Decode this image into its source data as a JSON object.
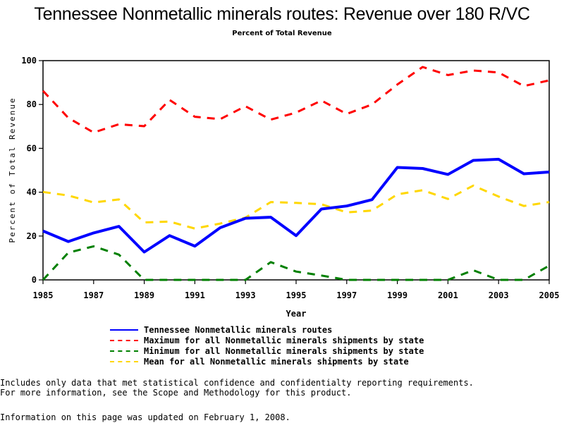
{
  "chart_data": {
    "type": "line",
    "title": "Tennessee Nonmetallic minerals routes: Revenue over 180 R/VC",
    "subtitle": "Percent of Total Revenue",
    "xlabel": "Year",
    "ylabel": "Percent of Total Revenue",
    "xlim": [
      1985,
      2005
    ],
    "ylim": [
      0,
      100
    ],
    "x_ticks": [
      "1985",
      "1987",
      "1989",
      "1991",
      "1993",
      "1995",
      "1997",
      "1999",
      "2001",
      "2003",
      "2005"
    ],
    "y_ticks": [
      "0",
      "20",
      "40",
      "60",
      "80",
      "100"
    ],
    "grid": false,
    "legend_position": "bottom",
    "x": [
      1985,
      1986,
      1987,
      1988,
      1989,
      1990,
      1991,
      1992,
      1993,
      1994,
      1995,
      1996,
      1997,
      1998,
      1999,
      2000,
      2001,
      2002,
      2003,
      2004,
      2005
    ],
    "series": [
      {
        "name": "Tennessee Nonmetallic minerals routes",
        "color": "#0000ff",
        "style": "solid",
        "values": [
          22.3,
          17.5,
          21.4,
          24.4,
          12.7,
          20.2,
          15.4,
          23.8,
          28.1,
          28.6,
          20.2,
          32.3,
          33.7,
          36.6,
          51.3,
          50.8,
          48.1,
          54.5,
          55.0,
          48.4,
          49.2
        ]
      },
      {
        "name": "Maximum for all Nonmetallic minerals shipments by state",
        "color": "#ff0000",
        "style": "dashed",
        "values": [
          86.2,
          73.9,
          67.2,
          71.0,
          70.1,
          82.1,
          74.4,
          73.3,
          79.2,
          73.1,
          76.3,
          81.8,
          75.7,
          80.0,
          89.1,
          97.1,
          93.4,
          95.5,
          94.6,
          88.4,
          91.0
        ]
      },
      {
        "name": "Minimum for all Nonmetallic minerals shipments by state",
        "color": "#008000",
        "style": "dashed",
        "values": [
          0,
          12.4,
          15.3,
          11.5,
          0,
          0,
          0,
          0,
          0,
          8.1,
          3.8,
          2.0,
          0,
          0,
          0,
          0,
          0,
          4.4,
          0,
          0,
          6.5
        ]
      },
      {
        "name": "Mean for all Nonmetallic minerals shipments by state",
        "color": "#ffd700",
        "style": "dashed",
        "values": [
          40.1,
          38.5,
          35.3,
          36.7,
          26.2,
          26.6,
          23.4,
          25.7,
          28.4,
          35.5,
          35.1,
          34.5,
          30.8,
          31.6,
          39.0,
          40.9,
          36.9,
          43.0,
          38.0,
          33.7,
          35.5
        ]
      }
    ]
  },
  "footer": {
    "note_line1": "Includes only data that met statistical confidence and confidentialty reporting requirements.",
    "note_line2": "For more information, see the Scope and Methodology for this product.",
    "updated": "Information on this page was updated on February 1, 2008."
  }
}
